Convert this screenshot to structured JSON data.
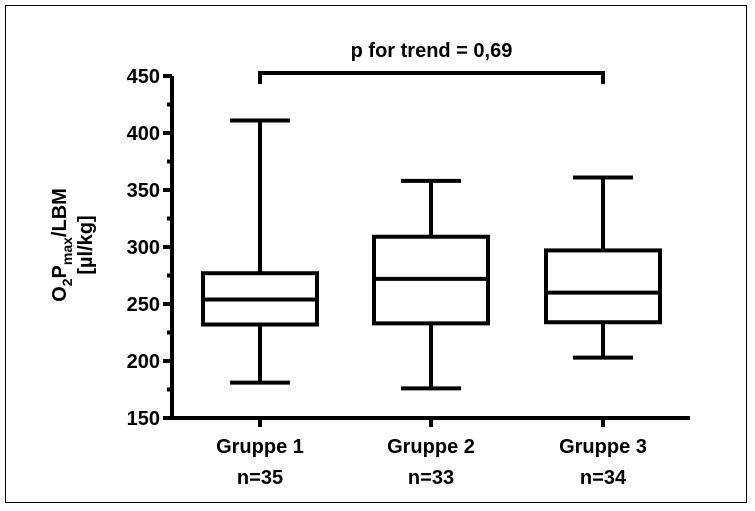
{
  "chart_data": {
    "type": "box",
    "annotation": "p for trend = 0,69",
    "ylabel_line1_main": "O",
    "ylabel_line1_sub1": "2",
    "ylabel_line1_mid": "P",
    "ylabel_line1_sub2": "max",
    "ylabel_line1_tail": "/LBM",
    "ylabel_line2": "[µl/kg]",
    "ylim": [
      150,
      450
    ],
    "yticks": [
      150,
      200,
      250,
      300,
      350,
      400,
      450
    ],
    "yticks_labels": [
      "150",
      "200",
      "250",
      "300",
      "350",
      "400",
      "450"
    ],
    "categories": [
      "Gruppe 1",
      "Gruppe 2",
      "Gruppe 3"
    ],
    "n_labels": [
      "n=35",
      "n=33",
      "n=34"
    ],
    "boxes": [
      {
        "min": 181,
        "q1": 232,
        "median": 254,
        "q3": 277,
        "max": 411
      },
      {
        "min": 176,
        "q1": 233,
        "median": 272,
        "q3": 309,
        "max": 358
      },
      {
        "min": 203,
        "q1": 234,
        "median": 260,
        "q3": 297,
        "max": 361
      }
    ],
    "grid": false
  }
}
